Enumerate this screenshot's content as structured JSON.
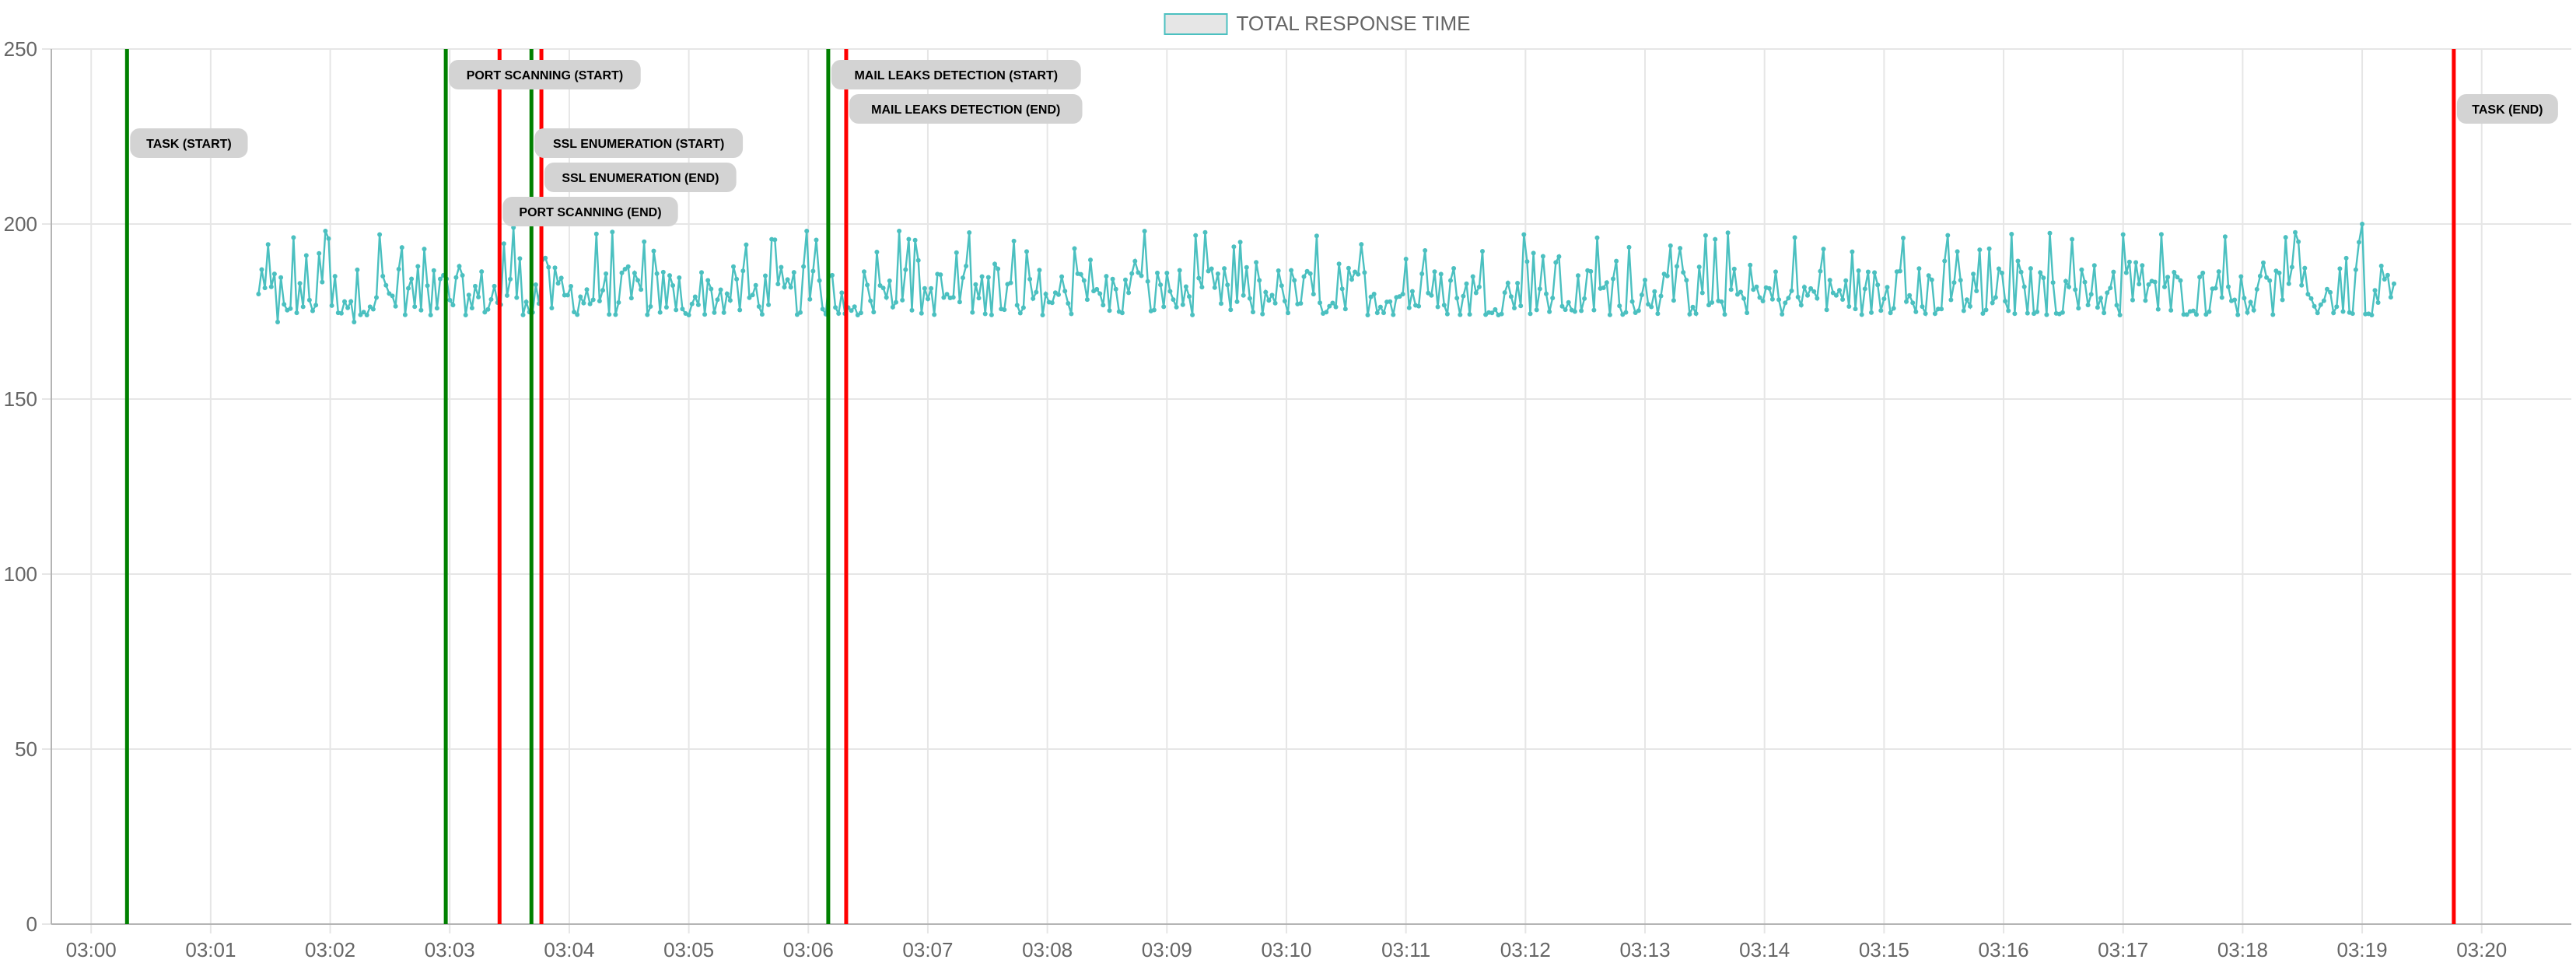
{
  "chart_data": {
    "type": "line",
    "title": "",
    "xlabel": "",
    "ylabel": "",
    "legend": {
      "position": "top",
      "items": [
        {
          "label": "TOTAL RESPONSE TIME",
          "fill": "#e6e6e6",
          "stroke": "#4bc0c0"
        }
      ]
    },
    "x_axis": {
      "type": "time",
      "range": [
        "02:59:40",
        "03:20:45"
      ],
      "ticks": [
        "03:00",
        "03:01",
        "03:02",
        "03:03",
        "03:04",
        "03:05",
        "03:06",
        "03:07",
        "03:08",
        "03:09",
        "03:10",
        "03:11",
        "03:12",
        "03:13",
        "03:14",
        "03:15",
        "03:16",
        "03:17",
        "03:18",
        "03:19",
        "03:20"
      ]
    },
    "y_axis": {
      "range": [
        0,
        250
      ],
      "ticks": [
        0,
        50,
        100,
        150,
        200,
        250
      ]
    },
    "grid": true,
    "series": [
      {
        "name": "TOTAL RESPONSE TIME",
        "color": "#4bc0c0",
        "x_start": "03:01:24",
        "x_end": "03:19:17",
        "sample_interval_seconds": 1.6,
        "baseline_range": [
          172,
          200
        ],
        "points": [
          {
            "x": "03:01:24",
            "y": 180
          },
          {
            "x": "03:01:26",
            "y": 187
          },
          {
            "x": "03:01:33",
            "y": 172
          },
          {
            "x": "03:01:57",
            "y": 198
          },
          {
            "x": "03:02:12",
            "y": 172
          },
          {
            "x": "03:02:25",
            "y": 197
          },
          {
            "x": "03:02:50",
            "y": 174
          },
          {
            "x": "03:03:12",
            "y": 176
          },
          {
            "x": "03:03:32",
            "y": 199
          },
          {
            "x": "03:04:15",
            "y": 178
          },
          {
            "x": "03:05:00",
            "y": 174
          },
          {
            "x": "03:06:00",
            "y": 198
          },
          {
            "x": "03:06:25",
            "y": 174
          },
          {
            "x": "03:06:35",
            "y": 192
          },
          {
            "x": "03:06:45",
            "y": 198
          },
          {
            "x": "03:07:20",
            "y": 188
          },
          {
            "x": "03:08:00",
            "y": 180
          },
          {
            "x": "03:09:00",
            "y": 186
          },
          {
            "x": "03:10:00",
            "y": 178
          },
          {
            "x": "03:11:00",
            "y": 190
          },
          {
            "x": "03:12:00",
            "y": 197
          },
          {
            "x": "03:12:25",
            "y": 175
          },
          {
            "x": "03:13:00",
            "y": 184
          },
          {
            "x": "03:14:00",
            "y": 178
          },
          {
            "x": "03:15:10",
            "y": 196
          },
          {
            "x": "03:16:00",
            "y": 186
          },
          {
            "x": "03:17:00",
            "y": 197
          },
          {
            "x": "03:18:00",
            "y": 185
          },
          {
            "x": "03:19:00",
            "y": 200
          },
          {
            "x": "03:19:05",
            "y": 174
          },
          {
            "x": "03:19:17",
            "y": 180
          }
        ]
      }
    ],
    "annotations": [
      {
        "label": "TASK (START)",
        "x": "03:00:18",
        "color": "#008000",
        "label_row": 2,
        "label_side": "right"
      },
      {
        "label": "PORT SCANNING (START)",
        "x": "03:02:58",
        "color": "#008000",
        "label_row": 0,
        "label_side": "right"
      },
      {
        "label": "PORT SCANNING (END)",
        "x": "03:03:25",
        "color": "#ff0000",
        "label_row": 4,
        "label_side": "right"
      },
      {
        "label": "SSL ENUMERATION (START)",
        "x": "03:03:41",
        "color": "#008000",
        "label_row": 2,
        "label_side": "right"
      },
      {
        "label": "SSL ENUMERATION (END)",
        "x": "03:03:46",
        "color": "#ff0000",
        "label_row": 3,
        "label_side": "right"
      },
      {
        "label": "MAIL LEAKS DETECTION (START)",
        "x": "03:06:10",
        "color": "#008000",
        "label_row": 0,
        "label_side": "right"
      },
      {
        "label": "MAIL LEAKS DETECTION (END)",
        "x": "03:06:19",
        "color": "#ff0000",
        "label_row": 1,
        "label_side": "right"
      },
      {
        "label": "TASK (END)",
        "x": "03:19:46",
        "color": "#ff0000",
        "label_row": 1,
        "label_side": "right"
      }
    ],
    "colors": {
      "grid": "#e6e6e6",
      "axis": "#b4b4b4",
      "tick_text": "#666666",
      "label_bg": "#d3d3d3",
      "label_text": "#000000"
    }
  }
}
